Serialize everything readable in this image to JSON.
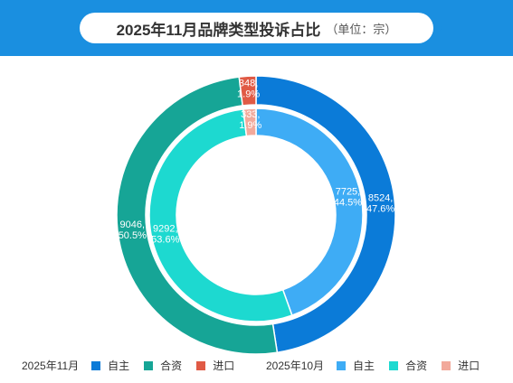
{
  "header": {
    "title": "2025年11月品牌类型投诉占比",
    "unit": "（单位：宗）"
  },
  "chart_data": {
    "type": "pie",
    "subtype": "nested-donut",
    "start_angle_deg": 0,
    "direction": "clockwise",
    "series": [
      {
        "name": "2025年11月",
        "ring": "outer",
        "categories": [
          "自主",
          "合资",
          "进口"
        ],
        "values": [
          8524,
          9046,
          348
        ],
        "percents": [
          "47.6%",
          "50.5%",
          "1.9%"
        ],
        "labels": [
          "8524,\n47.6%",
          "9046,\n50.5%",
          "348,\n1.9%"
        ],
        "colors": [
          "#0b7bd8",
          "#16a596",
          "#e05a45"
        ]
      },
      {
        "name": "2025年10月",
        "ring": "inner",
        "categories": [
          "自主",
          "合资",
          "进口"
        ],
        "values": [
          7725,
          9292,
          333
        ],
        "percents": [
          "44.5%",
          "53.6%",
          "1.9%"
        ],
        "labels": [
          "7725,\n44.5%",
          "9292,\n53.6%",
          "333,\n1.9%"
        ],
        "colors": [
          "#3eacf5",
          "#1dd9d0",
          "#f2a99b"
        ]
      }
    ],
    "legend_position": "bottom"
  }
}
